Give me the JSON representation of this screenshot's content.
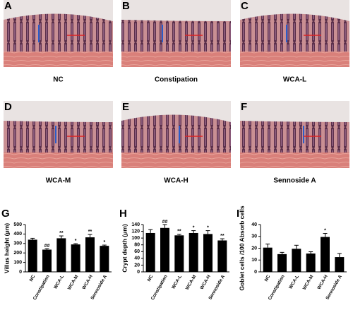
{
  "panels": [
    {
      "letter": "A",
      "caption": "NC"
    },
    {
      "letter": "B",
      "caption": "Constipation"
    },
    {
      "letter": "C",
      "caption": "WCA-L"
    },
    {
      "letter": "D",
      "caption": "WCA-M"
    },
    {
      "letter": "E",
      "caption": "WCA-H"
    },
    {
      "letter": "F",
      "caption": "Sennoside A"
    }
  ],
  "chart_data": [
    {
      "type": "bar",
      "panel": "G",
      "y_label": "Villus height (μm)",
      "categories": [
        "NC",
        "Constipation",
        "WCA-L",
        "WCA-M",
        "WCA-H",
        "Sennoside A"
      ],
      "values": [
        340,
        235,
        355,
        290,
        365,
        275
      ],
      "errors": [
        15,
        10,
        25,
        8,
        30,
        8
      ],
      "annotations": [
        null,
        "##",
        "**",
        "*",
        "**",
        "*"
      ],
      "color": "#000000",
      "ylim": [
        0,
        500
      ],
      "yticks": [
        0,
        100,
        200,
        300,
        400,
        500
      ]
    },
    {
      "type": "bar",
      "panel": "H",
      "y_label": "Crypt depth (μm)",
      "categories": [
        "NC",
        "Constipation",
        "WCA-L",
        "WCA-M",
        "WCA-H",
        "Sennoside A"
      ],
      "values": [
        115,
        130,
        108,
        115,
        112,
        93
      ],
      "errors": [
        10,
        10,
        3,
        7,
        10,
        5
      ],
      "annotations": [
        null,
        "##",
        "**",
        "*",
        "*",
        "**"
      ],
      "color": "#000000",
      "ylim": [
        0,
        140
      ],
      "yticks": [
        0,
        20,
        40,
        60,
        80,
        100,
        120,
        140
      ]
    },
    {
      "type": "bar",
      "panel": "I",
      "y_label": "Goblet cells /100 Absorb cells",
      "categories": [
        "NC",
        "Constipation",
        "WCA-L",
        "WCA-M",
        "WCA-H",
        "Sennoside A"
      ],
      "values": [
        20.5,
        15,
        19.5,
        15.5,
        29.5,
        12.5
      ],
      "errors": [
        3,
        1.5,
        3,
        1.5,
        3,
        3
      ],
      "annotations": [
        null,
        null,
        null,
        null,
        "*",
        null
      ],
      "color": "#000000",
      "ylim": [
        0,
        40
      ],
      "yticks": [
        0,
        10,
        20,
        30,
        40
      ]
    }
  ]
}
